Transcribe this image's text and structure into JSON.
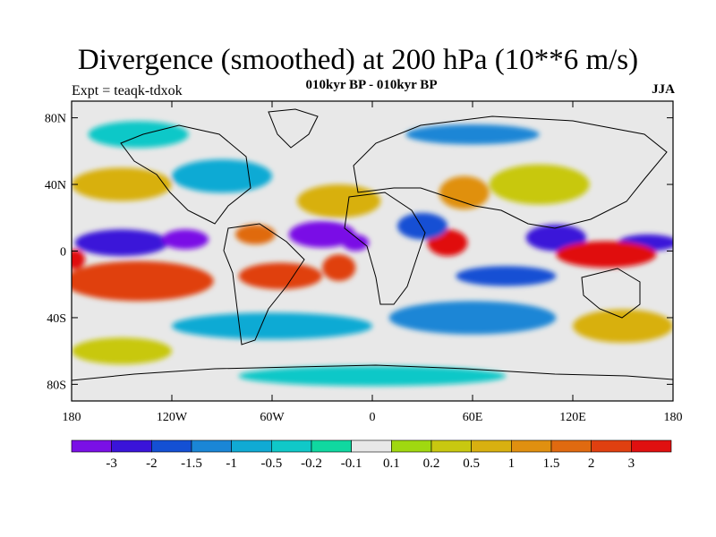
{
  "title": "Divergence (smoothed) at 200 hPa (10**6 m/s)",
  "subtitle": "010kyr BP - 010kyr BP",
  "left_label": "Expt = teaqk-tdxok",
  "right_label": "JJA",
  "axes": {
    "lat_ticks": [
      {
        "value": 80,
        "label": "80N"
      },
      {
        "value": 40,
        "label": "40N"
      },
      {
        "value": 0,
        "label": "0"
      },
      {
        "value": -40,
        "label": "40S"
      },
      {
        "value": -80,
        "label": "80S"
      }
    ],
    "lon_ticks": [
      {
        "value": -180,
        "label": "180"
      },
      {
        "value": -120,
        "label": "120W"
      },
      {
        "value": -60,
        "label": "60W"
      },
      {
        "value": 0,
        "label": "0"
      },
      {
        "value": 60,
        "label": "60E"
      },
      {
        "value": 120,
        "label": "120E"
      },
      {
        "value": 180,
        "label": "180"
      }
    ],
    "lon_range": [
      -180,
      180
    ],
    "lat_range": [
      -90,
      90
    ]
  },
  "colorbar": {
    "colors": [
      "#7a10e6",
      "#3a14d9",
      "#1450d4",
      "#1a86d6",
      "#10aad4",
      "#10c8c8",
      "#10d8a0",
      "#e8e8e8",
      "#a0d810",
      "#c8c810",
      "#d8b010",
      "#e09010",
      "#e06a10",
      "#e04010",
      "#e01010"
    ],
    "labels": [
      "-3",
      "-2",
      "-1.5",
      "-1",
      "-0.5",
      "-0.2",
      "-0.1",
      "0.1",
      "0.2",
      "0.5",
      "1",
      "1.5",
      "2",
      "3"
    ]
  },
  "field_regions": [
    {
      "lon": -150,
      "lat": 5,
      "rlon": 28,
      "rlat": 8,
      "level": 1
    },
    {
      "lon": -112,
      "lat": 7,
      "rlon": 14,
      "rlat": 6,
      "level": 0
    },
    {
      "lon": -30,
      "lat": 10,
      "rlon": 20,
      "rlat": 8,
      "level": 0
    },
    {
      "lon": -10,
      "lat": 5,
      "rlon": 8,
      "rlat": 5,
      "level": 0
    },
    {
      "lon": 110,
      "lat": 8,
      "rlon": 18,
      "rlat": 8,
      "level": 1
    },
    {
      "lon": 165,
      "lat": 5,
      "rlon": 18,
      "rlat": 5,
      "level": 1
    },
    {
      "lon": -140,
      "lat": -18,
      "rlon": 45,
      "rlat": 12,
      "level": 13
    },
    {
      "lon": -55,
      "lat": -15,
      "rlon": 25,
      "rlat": 8,
      "level": 13
    },
    {
      "lon": -20,
      "lat": -10,
      "rlon": 10,
      "rlat": 8,
      "level": 13
    },
    {
      "lon": 45,
      "lat": 5,
      "rlon": 12,
      "rlat": 8,
      "level": 14
    },
    {
      "lon": 140,
      "lat": -2,
      "rlon": 30,
      "rlat": 8,
      "level": 14
    },
    {
      "lon": -178,
      "lat": -5,
      "rlon": 6,
      "rlat": 6,
      "level": 14
    },
    {
      "lon": -20,
      "lat": 30,
      "rlon": 25,
      "rlat": 10,
      "level": 10
    },
    {
      "lon": 55,
      "lat": 35,
      "rlon": 15,
      "rlat": 10,
      "level": 11
    },
    {
      "lon": 100,
      "lat": 40,
      "rlon": 30,
      "rlat": 12,
      "level": 9
    },
    {
      "lon": -90,
      "lat": 45,
      "rlon": 30,
      "rlat": 10,
      "level": 4
    },
    {
      "lon": -150,
      "lat": 40,
      "rlon": 30,
      "rlat": 10,
      "level": 10
    },
    {
      "lon": -60,
      "lat": -45,
      "rlon": 60,
      "rlat": 8,
      "level": 4
    },
    {
      "lon": 60,
      "lat": -40,
      "rlon": 50,
      "rlat": 10,
      "level": 3
    },
    {
      "lon": 150,
      "lat": -45,
      "rlon": 30,
      "rlat": 10,
      "level": 10
    },
    {
      "lon": -150,
      "lat": -60,
      "rlon": 30,
      "rlat": 8,
      "level": 9
    },
    {
      "lon": 0,
      "lat": -75,
      "rlon": 80,
      "rlat": 6,
      "level": 5
    },
    {
      "lon": -140,
      "lat": 70,
      "rlon": 30,
      "rlat": 8,
      "level": 5
    },
    {
      "lon": 60,
      "lat": 70,
      "rlon": 40,
      "rlat": 6,
      "level": 3
    },
    {
      "lon": 30,
      "lat": 15,
      "rlon": 15,
      "rlat": 8,
      "level": 2
    },
    {
      "lon": 80,
      "lat": -15,
      "rlon": 30,
      "rlat": 6,
      "level": 2
    },
    {
      "lon": -70,
      "lat": 10,
      "rlon": 12,
      "rlat": 6,
      "level": 12
    }
  ]
}
